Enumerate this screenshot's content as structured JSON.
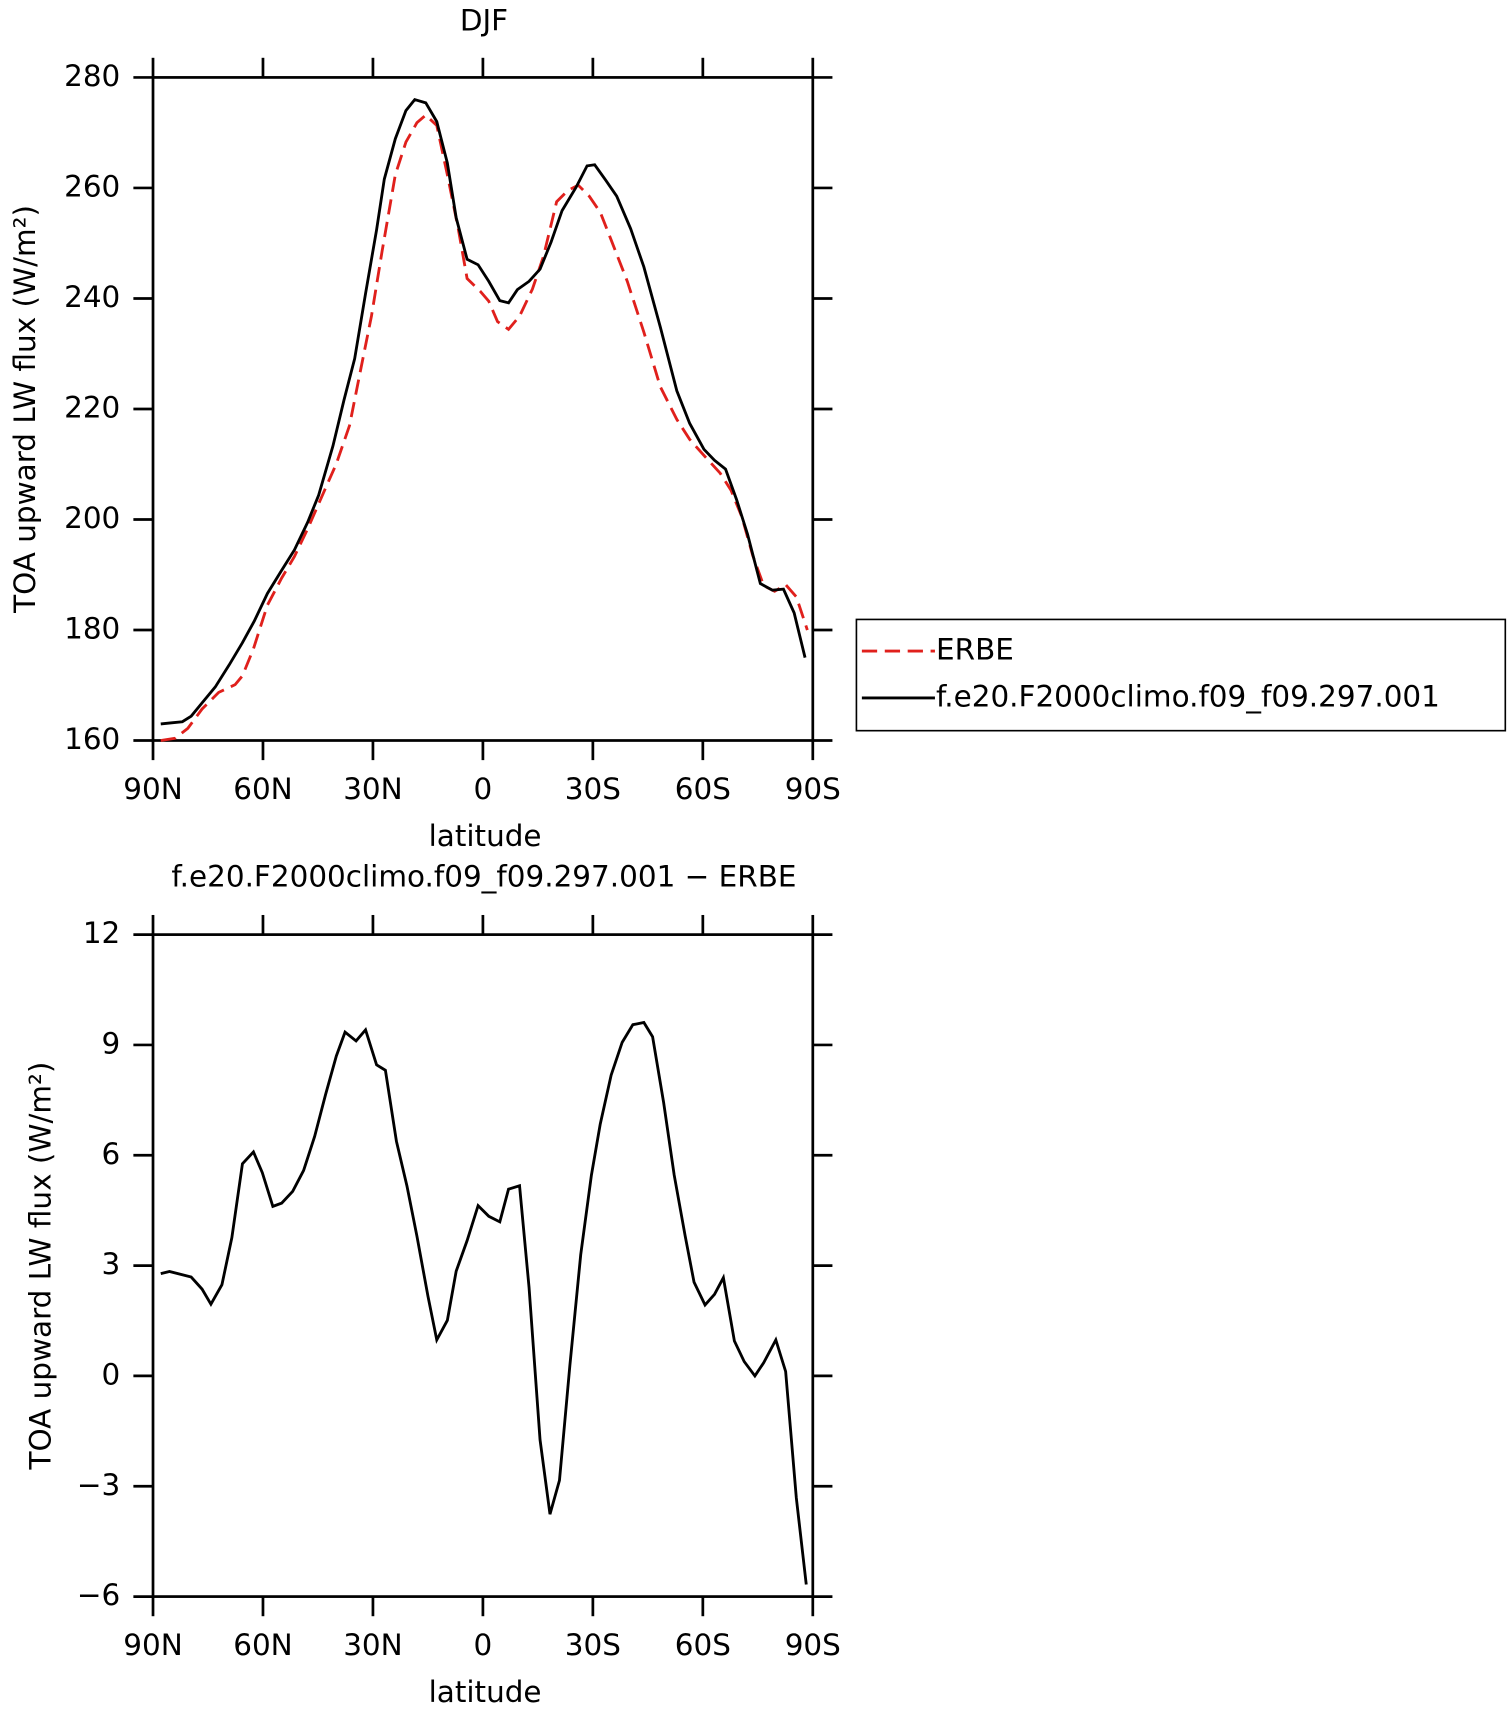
{
  "chart_data": [
    {
      "type": "line",
      "title": "DJF",
      "xlabel": "latitude",
      "ylabel": "TOA upward LW flux (W/m²)",
      "xlim": [
        90,
        -90
      ],
      "xticks": [
        {
          "value": 90,
          "label": "90N"
        },
        {
          "value": 60,
          "label": "60N"
        },
        {
          "value": 30,
          "label": "30N"
        },
        0,
        {
          "value": -30,
          "label": "30S"
        },
        {
          "value": -60,
          "label": "60S"
        },
        {
          "value": -90,
          "label": "90S"
        }
      ],
      "ylim": [
        160,
        280
      ],
      "yticks": [
        160,
        180,
        200,
        220,
        240,
        260,
        280
      ],
      "legend": "right",
      "series": [
        {
          "name": "ERBE",
          "color": "#e0201c",
          "line_style": "dashed",
          "x": [
            87.9,
            84.0,
            80.5,
            76.6,
            72.1,
            67.6,
            65.6,
            62.6,
            58.8,
            54.9,
            51.4,
            47.8,
            43.9,
            40.0,
            36.4,
            33.4,
            30.4,
            27.5,
            23.9,
            21.0,
            18.0,
            15.6,
            12.6,
            9.7,
            6.7,
            4.3,
            0.7,
            -1.6,
            -4.0,
            -7.0,
            -10.0,
            -13.5,
            -16.5,
            -20.1,
            -23.1,
            -26.0,
            -29.0,
            -32.0,
            -35.0,
            -39.4,
            -43.9,
            -48.4,
            -52.9,
            -56.4,
            -60.3,
            -64.7,
            -67.7,
            -70.7,
            -73.6,
            -76.6,
            -79.6,
            -82.6,
            -85.5,
            -88.5
          ],
          "values": [
            160.0,
            160.4,
            162.2,
            165.7,
            168.7,
            170.1,
            171.7,
            176.6,
            184.5,
            189.4,
            193.3,
            198.3,
            204.2,
            210.1,
            217.0,
            226.9,
            236.8,
            248.6,
            262.4,
            268.3,
            271.8,
            273.2,
            271.3,
            262.4,
            252.5,
            243.6,
            241.3,
            239.5,
            235.8,
            234.4,
            236.8,
            241.7,
            247.6,
            257.5,
            259.5,
            260.5,
            258.5,
            255.6,
            250.6,
            243.1,
            233.9,
            224.0,
            218.1,
            214.5,
            211.6,
            208.4,
            205.3,
            200.4,
            193.5,
            188.0,
            187.0,
            188.2,
            186.0,
            180.0
          ]
        },
        {
          "name": "f.e20.F2000climo.f09_f09.297.001",
          "color": "#000000",
          "line_style": "solid",
          "x": [
            87.9,
            84.9,
            82.0,
            79.6,
            76.6,
            73.0,
            69.2,
            65.6,
            62.4,
            58.8,
            55.2,
            51.4,
            47.8,
            44.8,
            40.9,
            37.9,
            35.0,
            32.0,
            29.0,
            26.9,
            23.9,
            21.0,
            18.6,
            15.6,
            12.6,
            9.7,
            7.3,
            4.3,
            1.3,
            -1.6,
            -4.6,
            -7.0,
            -9.4,
            -12.6,
            -15.6,
            -18.6,
            -21.6,
            -25.4,
            -28.4,
            -30.5,
            -33.5,
            -36.5,
            -40.3,
            -43.9,
            -48.4,
            -52.9,
            -56.4,
            -60.3,
            -63.2,
            -66.2,
            -69.2,
            -72.2,
            -75.7,
            -79.0,
            -82.0,
            -84.9,
            -87.9
          ],
          "values": [
            163.0,
            163.2,
            163.4,
            164.4,
            166.8,
            169.7,
            173.7,
            177.7,
            181.6,
            186.6,
            190.5,
            194.5,
            199.5,
            204.4,
            213.3,
            221.6,
            229.1,
            240.9,
            252.4,
            261.6,
            268.9,
            274.0,
            276.0,
            275.4,
            272.0,
            264.5,
            254.6,
            247.1,
            246.1,
            243.1,
            239.6,
            239.2,
            241.6,
            243.1,
            245.3,
            250.2,
            255.9,
            260.1,
            264.0,
            264.2,
            261.4,
            258.5,
            252.6,
            245.7,
            234.8,
            223.3,
            217.4,
            212.7,
            210.7,
            209.1,
            203.6,
            197.3,
            188.4,
            187.2,
            187.4,
            183.1,
            175.0
          ]
        }
      ]
    },
    {
      "type": "line",
      "title": "f.e20.F2000climo.f09_f09.297.001 − ERBE",
      "xlabel": "latitude",
      "ylabel": "TOA upward LW flux (W/m²)",
      "xlim": [
        90,
        -90
      ],
      "xticks": [
        {
          "value": 90,
          "label": "90N"
        },
        {
          "value": 60,
          "label": "60N"
        },
        {
          "value": 30,
          "label": "30N"
        },
        0,
        {
          "value": -30,
          "label": "30S"
        },
        {
          "value": -60,
          "label": "60S"
        },
        {
          "value": -90,
          "label": "90S"
        }
      ],
      "ylim": [
        -6,
        12
      ],
      "yticks": [
        {
          "value": -6,
          "label": "−6"
        },
        {
          "value": -3,
          "label": "−3"
        },
        0,
        3,
        6,
        9,
        12
      ],
      "series": [
        {
          "color": "#000000",
          "line_style": "solid",
          "x": [
            87.9,
            85.5,
            79.6,
            76.6,
            74.2,
            71.2,
            68.5,
            65.6,
            62.6,
            60.2,
            57.3,
            54.9,
            51.9,
            48.9,
            45.9,
            42.9,
            40.0,
            37.6,
            34.6,
            32.0,
            29.0,
            26.6,
            23.6,
            20.7,
            18.0,
            15.0,
            12.6,
            9.7,
            7.3,
            4.3,
            1.3,
            -1.6,
            -4.6,
            -7.0,
            -10.0,
            -12.6,
            -15.6,
            -18.3,
            -20.9,
            -23.7,
            -26.7,
            -29.6,
            -32.0,
            -35.0,
            -38.0,
            -40.9,
            -43.9,
            -46.3,
            -49.3,
            -52.2,
            -55.2,
            -57.6,
            -60.6,
            -63.2,
            -65.6,
            -68.6,
            -71.3,
            -74.2,
            -76.6,
            -79.9,
            -82.6,
            -85.5,
            -88.2
          ],
          "values": [
            2.78,
            2.84,
            2.69,
            2.36,
            1.95,
            2.48,
            3.76,
            5.77,
            6.09,
            5.53,
            4.61,
            4.7,
            5.02,
            5.59,
            6.51,
            7.66,
            8.7,
            9.35,
            9.11,
            9.41,
            8.46,
            8.31,
            6.38,
            5.16,
            3.8,
            2.17,
            0.98,
            1.51,
            2.85,
            3.68,
            4.63,
            4.34,
            4.19,
            5.08,
            5.17,
            2.41,
            -1.74,
            -3.76,
            -2.84,
            0.27,
            3.3,
            5.46,
            6.85,
            8.18,
            9.07,
            9.55,
            9.61,
            9.22,
            7.44,
            5.46,
            3.8,
            2.55,
            1.93,
            2.22,
            2.67,
            0.95,
            0.39,
            0.0,
            0.36,
            0.98,
            0.12,
            -3.32,
            -5.67
          ]
        }
      ]
    }
  ]
}
